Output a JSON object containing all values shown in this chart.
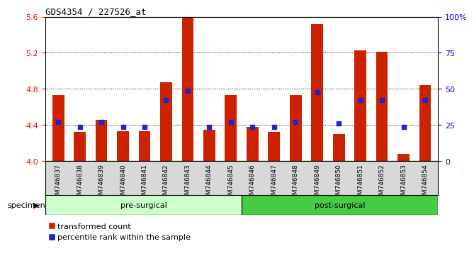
{
  "title": "GDS4354 / 227526_at",
  "samples": [
    "GSM746837",
    "GSM746838",
    "GSM746839",
    "GSM746840",
    "GSM746841",
    "GSM746842",
    "GSM746843",
    "GSM746844",
    "GSM746845",
    "GSM746846",
    "GSM746847",
    "GSM746848",
    "GSM746849",
    "GSM746850",
    "GSM746851",
    "GSM746852",
    "GSM746853",
    "GSM746854"
  ],
  "red_values": [
    4.73,
    4.32,
    4.46,
    4.33,
    4.33,
    4.87,
    5.6,
    4.35,
    4.73,
    4.38,
    4.32,
    4.73,
    5.52,
    4.3,
    5.23,
    5.21,
    4.08,
    4.84
  ],
  "blue_values": [
    4.43,
    4.38,
    4.43,
    4.38,
    4.38,
    4.68,
    4.78,
    4.38,
    4.43,
    4.38,
    4.38,
    4.43,
    4.76,
    4.42,
    4.68,
    4.68,
    4.38,
    4.68
  ],
  "pre_surgical_count": 9,
  "post_surgical_count": 9,
  "ylim_left": [
    4.0,
    5.6
  ],
  "ylim_right": [
    0,
    100
  ],
  "yticks_left": [
    4.0,
    4.4,
    4.8,
    5.2,
    5.6
  ],
  "yticks_right": [
    0,
    25,
    50,
    75,
    100
  ],
  "ytick_labels_right": [
    "0",
    "25",
    "50",
    "75",
    "100%"
  ],
  "bar_color": "#cc2200",
  "blue_color": "#2222cc",
  "pre_surgical_color": "#ccffcc",
  "post_surgical_color": "#44cc44",
  "specimen_label": "specimen",
  "pre_label": "pre-surgical",
  "post_label": "post-surgical",
  "legend_red": "transformed count",
  "legend_blue": "percentile rank within the sample",
  "bar_width": 0.55,
  "blue_marker_size": 5,
  "gridline_ticks": [
    4.4,
    4.8,
    5.2
  ]
}
